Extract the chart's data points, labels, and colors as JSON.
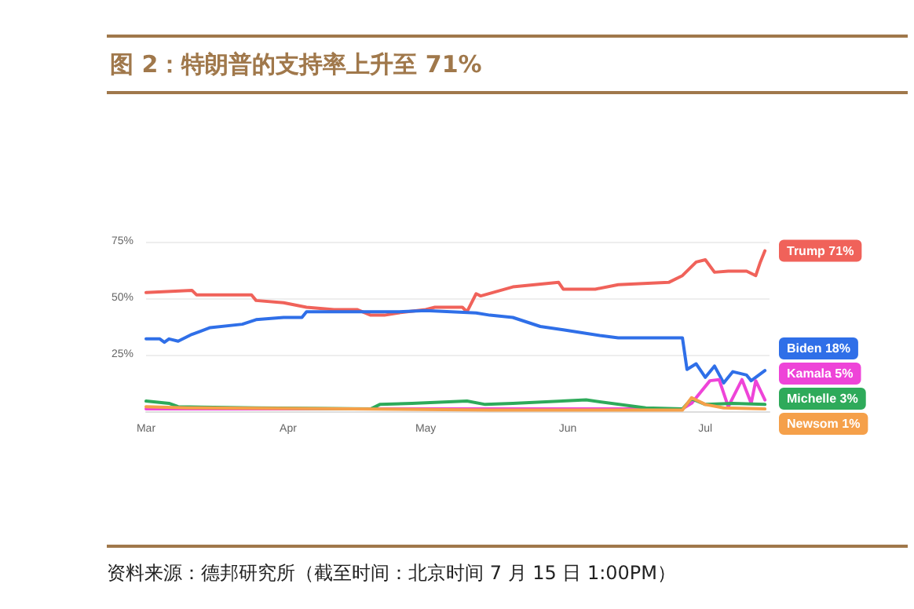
{
  "chart_data": {
    "type": "line",
    "title": "图 2：特朗普的支持率上升至 71%",
    "annotations": [
      "资料来源：德邦研究所（截至时间：北京时间 7 月 15 日 1:00PM）"
    ],
    "xlim": [
      "--03-01",
      "--07-15"
    ],
    "xticks": [
      {
        "value": "--03-01",
        "label": "Mar"
      },
      {
        "value": "--04-01",
        "label": "Apr"
      },
      {
        "value": "--05-01",
        "label": "May"
      },
      {
        "value": "--06-01",
        "label": "Jun"
      },
      {
        "value": "--07-01",
        "label": "Jul"
      }
    ],
    "ylim": [
      0,
      75
    ],
    "yticks": [
      {
        "value": 25,
        "label": "25%"
      },
      {
        "value": 50,
        "label": "50%"
      },
      {
        "value": 75,
        "label": "75%"
      }
    ],
    "grid": "y",
    "legend": false,
    "marker": "none",
    "line_style": "solid",
    "series": [
      {
        "name": "Trump 71%",
        "color": "#f0625a",
        "x": [
          "--03-01",
          "--03-11",
          "--03-12",
          "--03-24",
          "--03-25",
          "--03-31",
          "--04-05",
          "--04-11",
          "--04-16",
          "--04-19",
          "--04-22",
          "--04-25",
          "--05-01",
          "--05-03",
          "--05-09",
          "--05-10",
          "--05-12",
          "--05-13",
          "--05-20",
          "--05-30",
          "--05-31",
          "--06-07",
          "--06-12",
          "--06-23",
          "--06-26",
          "--06-29",
          "--07-01",
          "--07-03",
          "--07-06",
          "--07-10",
          "--07-12",
          "--07-13",
          "--07-14"
        ],
        "values": [
          52.5,
          53.5,
          51.5,
          51.5,
          49,
          48,
          46,
          45,
          45,
          42.5,
          42.5,
          43.5,
          45,
          46,
          46,
          44,
          52,
          51,
          55,
          57,
          54,
          54,
          56,
          57,
          60,
          66,
          67,
          61.5,
          62,
          62,
          60,
          66,
          71
        ]
      },
      {
        "name": "Biden 18%",
        "color": "#2f6fe8",
        "x": [
          "--03-01",
          "--03-04",
          "--03-05",
          "--03-06",
          "--03-08",
          "--03-11",
          "--03-15",
          "--03-22",
          "--03-25",
          "--03-31",
          "--04-04",
          "--04-05",
          "--04-25",
          "--05-01",
          "--05-12",
          "--05-15",
          "--05-20",
          "--05-26",
          "--05-31",
          "--06-08",
          "--06-12",
          "--06-26",
          "--06-27",
          "--06-29",
          "--07-01",
          "--07-03",
          "--07-05",
          "--07-07",
          "--07-10",
          "--07-11",
          "--07-14"
        ],
        "values": [
          32,
          32,
          30.5,
          32,
          31,
          34,
          37,
          38.5,
          40.5,
          41.5,
          41.5,
          44,
          44,
          44.5,
          43.5,
          42.5,
          41.5,
          37.5,
          36,
          33.5,
          32.5,
          32.5,
          18.5,
          21,
          15,
          20,
          12.5,
          17.5,
          16,
          13.5,
          18
        ]
      },
      {
        "name": "Kamala 5%",
        "color": "#ee44d8",
        "x": [
          "--03-01",
          "--04-15",
          "--05-15",
          "--06-26",
          "--06-28",
          "--07-02",
          "--07-04",
          "--07-06",
          "--07-09",
          "--07-11",
          "--07-12",
          "--07-14"
        ],
        "values": [
          1,
          1,
          1,
          1,
          3.5,
          13.5,
          14,
          2,
          14,
          3.5,
          13.5,
          5
        ]
      },
      {
        "name": "Michelle 3%",
        "color": "#2eaa5a",
        "x": [
          "--03-01",
          "--03-06",
          "--03-08",
          "--03-25",
          "--04-19",
          "--04-21",
          "--04-28",
          "--05-10",
          "--05-14",
          "--05-20",
          "--06-05",
          "--06-18",
          "--06-26",
          "--06-28",
          "--07-01",
          "--07-07",
          "--07-14"
        ],
        "values": [
          4.5,
          3.5,
          2,
          1.5,
          1,
          3,
          3.5,
          4.5,
          3,
          3.5,
          5,
          1.5,
          1,
          5.5,
          3,
          3.5,
          3
        ]
      },
      {
        "name": "Newsom 1%",
        "color": "#f5a04a",
        "x": [
          "--03-01",
          "--03-10",
          "--04-15",
          "--05-15",
          "--06-26",
          "--06-28",
          "--07-01",
          "--07-05",
          "--07-14"
        ],
        "values": [
          2,
          1.5,
          1,
          0.5,
          0.5,
          6,
          3,
          1.5,
          1
        ]
      }
    ]
  }
}
